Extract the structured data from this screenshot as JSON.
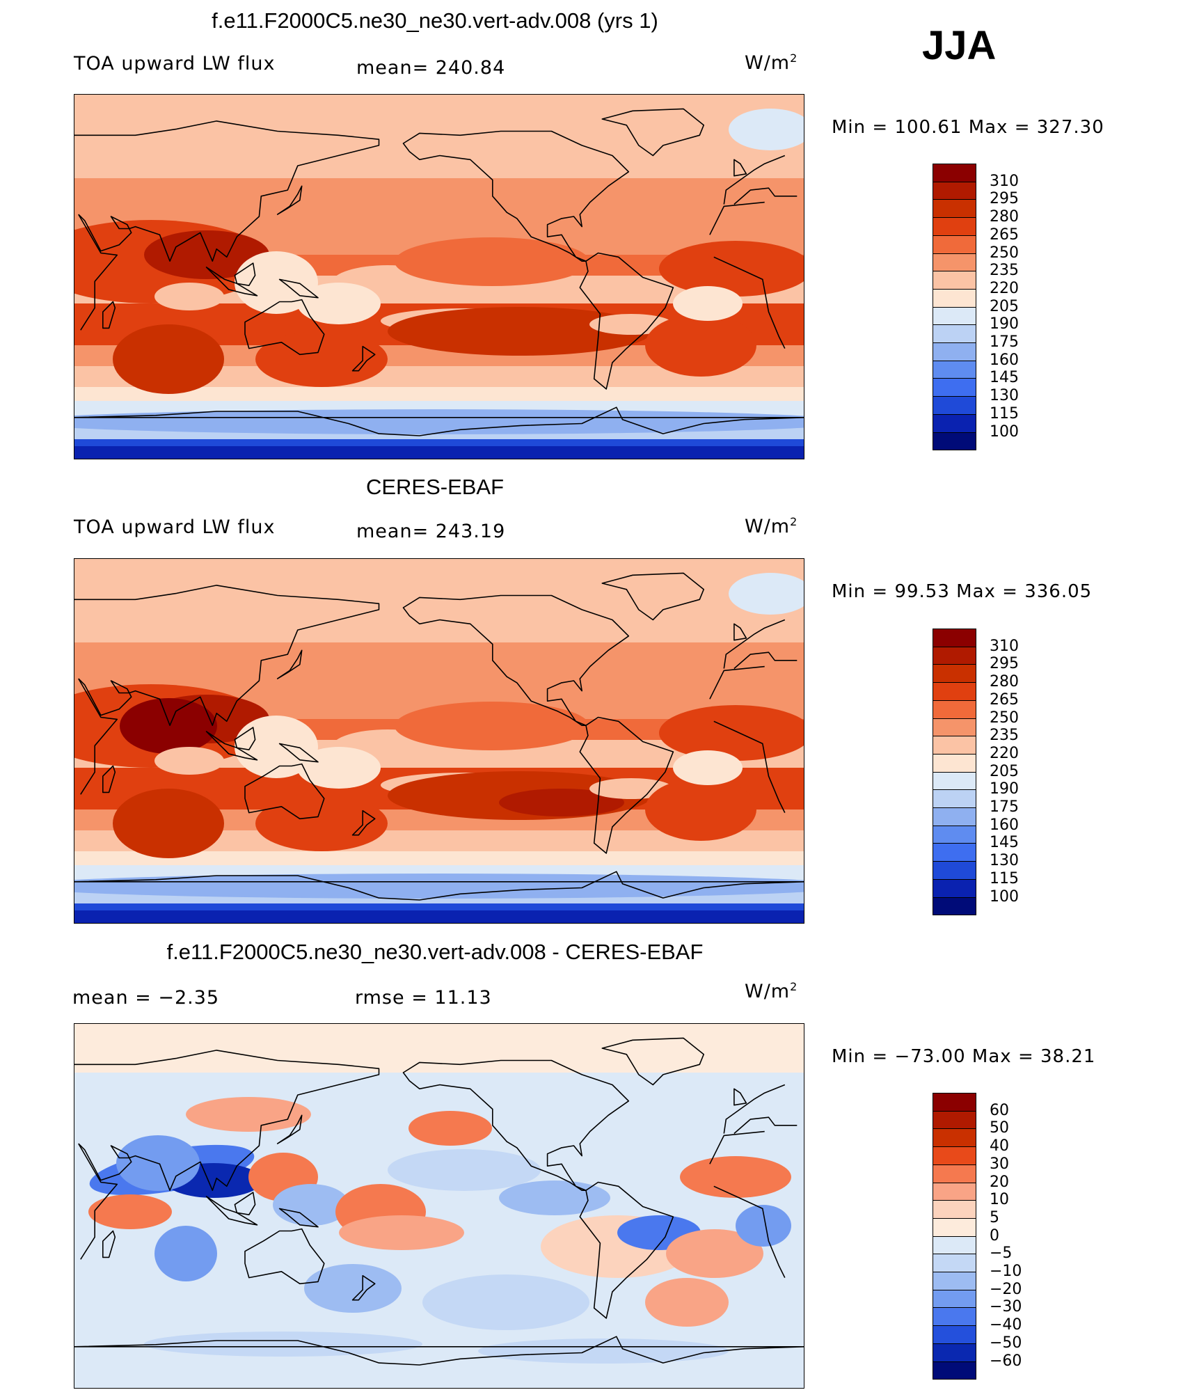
{
  "season": "JJA",
  "panels": [
    {
      "title": "f.e11.F2000C5.ne30_ne30.vert-adv.008 (yrs 1)",
      "left_label": "TOA upward LW flux",
      "mid_label": "mean= 240.84",
      "units": "W/m",
      "units_sup": "2",
      "minmax": "Min = 100.61 Max = 327.30",
      "kind": "model",
      "colorbar": {
        "levels": [
          "310",
          "295",
          "280",
          "265",
          "250",
          "235",
          "220",
          "205",
          "190",
          "175",
          "160",
          "145",
          "130",
          "115",
          "100"
        ],
        "colors": [
          "#8b0000",
          "#b01a00",
          "#c93000",
          "#e04010",
          "#f06a3a",
          "#f5946a",
          "#fbc3a5",
          "#fde5d2",
          "#dce9f7",
          "#bcd2f4",
          "#8fb0f0",
          "#5f8cf0",
          "#3e6ef0",
          "#1f4ad8",
          "#0a22b0",
          "#000b78"
        ]
      }
    },
    {
      "title": "CERES-EBAF",
      "left_label": "TOA upward LW flux",
      "mid_label": "mean= 243.19",
      "units": "W/m",
      "units_sup": "2",
      "minmax": "Min =   99.53 Max = 336.05",
      "kind": "obs",
      "colorbar": {
        "levels": [
          "310",
          "295",
          "280",
          "265",
          "250",
          "235",
          "220",
          "205",
          "190",
          "175",
          "160",
          "145",
          "130",
          "115",
          "100"
        ],
        "colors": [
          "#8b0000",
          "#b01a00",
          "#c93000",
          "#e04010",
          "#f06a3a",
          "#f5946a",
          "#fbc3a5",
          "#fde5d2",
          "#dce9f7",
          "#bcd2f4",
          "#8fb0f0",
          "#5f8cf0",
          "#3e6ef0",
          "#1f4ad8",
          "#0a22b0",
          "#000b78"
        ]
      }
    },
    {
      "title": "f.e11.F2000C5.ne30_ne30.vert-adv.008 - CERES-EBAF",
      "left_label": "mean =    −2.35",
      "mid_label": "rmse =    11.13",
      "units": "W/m",
      "units_sup": "2",
      "minmax": "Min = −73.00 Max =   38.21",
      "kind": "diff",
      "colorbar": {
        "levels": [
          "60",
          "50",
          "40",
          "30",
          "20",
          "10",
          "5",
          "0",
          "−5",
          "−10",
          "−20",
          "−30",
          "−40",
          "−50",
          "−60"
        ],
        "colors": [
          "#8b0000",
          "#b01a00",
          "#c93000",
          "#e84a1a",
          "#f5794f",
          "#f9a486",
          "#fcd3bd",
          "#fdebdc",
          "#dce9f7",
          "#c4d8f5",
          "#9dbcf2",
          "#739cf0",
          "#4a78ee",
          "#2450dc",
          "#0a28b0",
          "#000b78"
        ]
      }
    }
  ]
}
